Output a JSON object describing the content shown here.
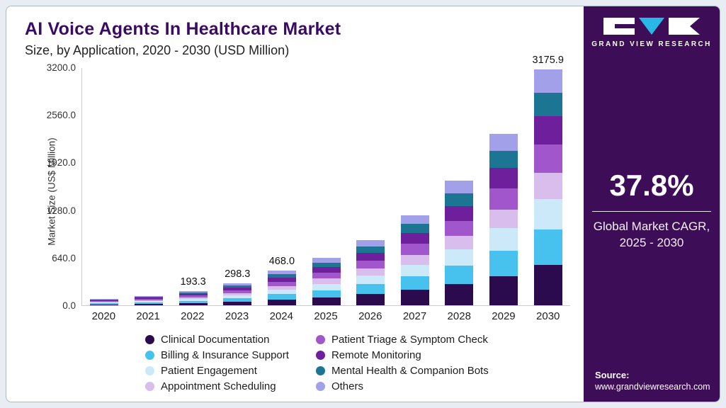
{
  "header": {
    "title": "AI Voice Agents In Healthcare Market",
    "subtitle": "Size, by Application, 2020 - 2030 (USD Million)"
  },
  "chart_data": {
    "type": "bar",
    "stacked": true,
    "title": "AI Voice Agents In Healthcare Market Size, by Application, 2020 - 2030 (USD Million)",
    "xlabel": "",
    "ylabel": "Market Size (US$ Million)",
    "ylim": [
      0,
      3200
    ],
    "yticks": [
      0,
      640,
      1280,
      1920,
      2560,
      3200
    ],
    "grid": false,
    "legend_position": "bottom",
    "categories": [
      "2020",
      "2021",
      "2022",
      "2023",
      "2024",
      "2025",
      "2026",
      "2027",
      "2028",
      "2029",
      "2030"
    ],
    "series": [
      {
        "name": "Clinical Documentation",
        "color": "#2b0a4d",
        "values": [
          13.9,
          21.4,
          32.9,
          50.7,
          79.6,
          108.6,
          149.7,
          206.3,
          284.3,
          391.7,
          539.9
        ]
      },
      {
        "name": "Billing & Insurance Support",
        "color": "#47c2ee",
        "values": [
          12.2,
          18.9,
          29.0,
          44.7,
          70.2,
          95.9,
          132.1,
          182.0,
          250.8,
          345.7,
          476.4
        ]
      },
      {
        "name": "Patient Engagement",
        "color": "#cce9f9",
        "values": [
          10.6,
          16.4,
          25.1,
          38.8,
          60.8,
          83.1,
          114.5,
          157.8,
          217.4,
          299.6,
          412.9
        ]
      },
      {
        "name": "Appointment Scheduling",
        "color": "#d9bdec",
        "values": [
          9.0,
          13.8,
          21.3,
          32.8,
          51.5,
          70.3,
          96.9,
          133.5,
          184.0,
          253.5,
          349.3
        ]
      },
      {
        "name": "Patient Triage & Symptom Check",
        "color": "#a156cb",
        "values": [
          9.8,
          15.1,
          23.2,
          35.8,
          56.2,
          76.7,
          105.7,
          145.6,
          200.7,
          276.5,
          381.1
        ]
      },
      {
        "name": "Remote Monitoring",
        "color": "#6d1f9c",
        "values": [
          9.8,
          15.1,
          23.2,
          35.8,
          56.2,
          76.7,
          105.7,
          145.6,
          200.7,
          276.5,
          381.1
        ]
      },
      {
        "name": "Mental Health & Companion Bots",
        "color": "#1b7593",
        "values": [
          8.2,
          12.6,
          19.3,
          29.8,
          46.8,
          63.9,
          88.1,
          121.4,
          167.2,
          230.4,
          317.6
        ]
      },
      {
        "name": "Others",
        "color": "#a2a0e8",
        "values": [
          8.2,
          12.6,
          19.3,
          29.8,
          46.8,
          63.9,
          88.1,
          121.4,
          167.2,
          230.4,
          317.6
        ]
      }
    ],
    "totals": [
      81.7,
      125.9,
      193.3,
      298.2,
      468.1,
      639.1,
      880.8,
      1213.7,
      1672.3,
      2304.3,
      3175.9
    ],
    "bar_labels": {
      "2022": "193.3",
      "2023": "298.3",
      "2024": "468.0",
      "2030": "3175.9"
    }
  },
  "panel": {
    "brand": "GRAND VIEW RESEARCH",
    "cagr_value": "37.8%",
    "cagr_caption_line1": "Global Market CAGR,",
    "cagr_caption_line2": "2025 - 2030",
    "source_label": "Source:",
    "source_url": "www.grandviewresearch.com"
  }
}
